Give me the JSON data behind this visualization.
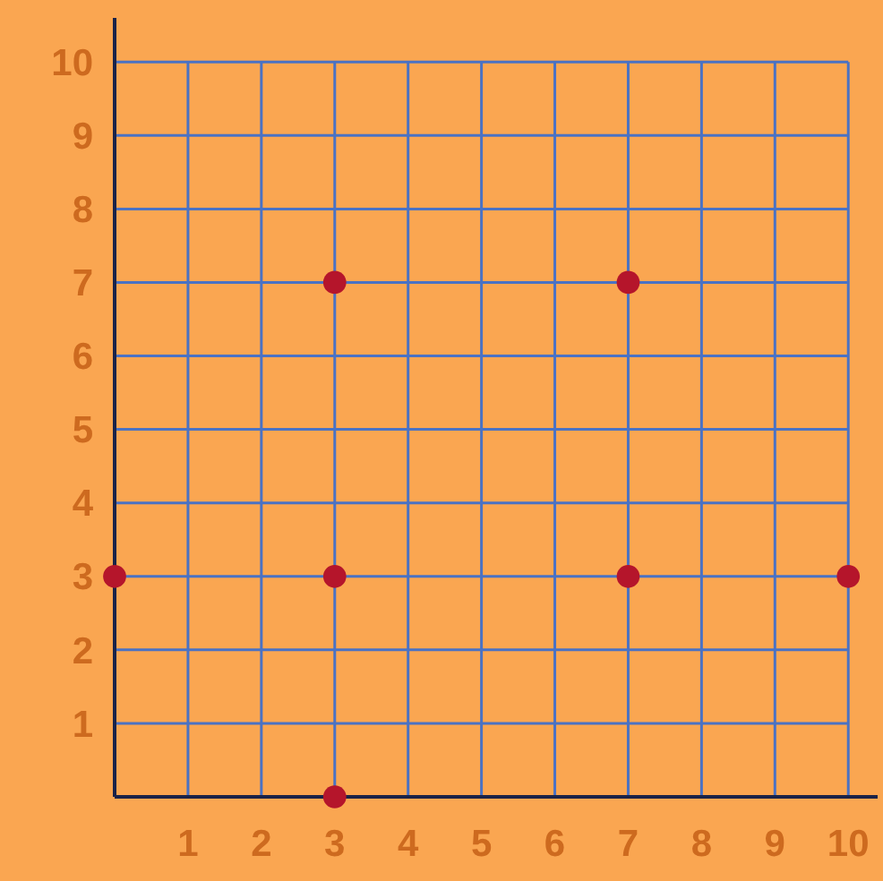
{
  "chart_data": {
    "type": "scatter",
    "x": [
      0,
      3,
      3,
      3,
      7,
      7,
      10
    ],
    "values": [
      3,
      0,
      3,
      7,
      7,
      3,
      3
    ],
    "color": "#b5152b",
    "marker": "circle",
    "xlim": [
      0,
      10.4
    ],
    "ylim": [
      0,
      10.6
    ],
    "xticks": [
      1,
      2,
      3,
      4,
      5,
      6,
      7,
      8,
      9,
      10
    ],
    "yticks": [
      1,
      2,
      3,
      4,
      5,
      6,
      7,
      8,
      9,
      10
    ],
    "grid": true
  }
}
